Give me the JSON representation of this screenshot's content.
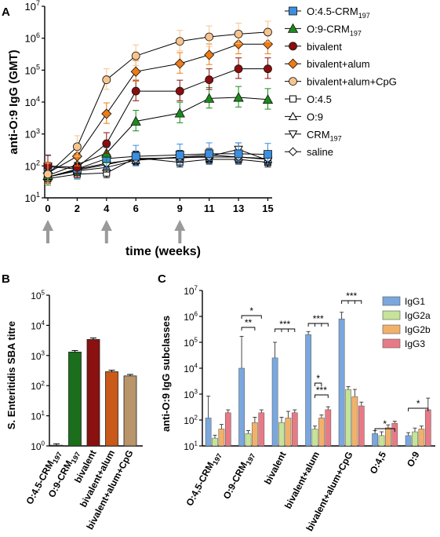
{
  "chart_data": [
    {
      "panel": "A",
      "type": "line",
      "ylabel": "anti-O:9 IgG (GMT)",
      "xlabel": "time (weeks)",
      "yscale": "log",
      "ylim": [
        10,
        10000000
      ],
      "y_ticks": [
        {
          "base": "10",
          "exp": "1"
        },
        {
          "base": "10",
          "exp": "2"
        },
        {
          "base": "10",
          "exp": "3"
        },
        {
          "base": "10",
          "exp": "4"
        },
        {
          "base": "10",
          "exp": "5"
        },
        {
          "base": "10",
          "exp": "6"
        },
        {
          "base": "10",
          "exp": "7"
        }
      ],
      "x": [
        0,
        2,
        4,
        6,
        9,
        11,
        13,
        15
      ],
      "x_tick_labels": [
        "0",
        "2",
        "4",
        "6",
        "9",
        "11",
        "13",
        "15"
      ],
      "immunization_weeks": [
        0,
        4,
        9
      ],
      "legend_position": "right",
      "series": [
        {
          "name": "O:4.5-CRM197",
          "label_main": "O:4.5-CRM",
          "label_sub": "197",
          "marker": "square",
          "color": "#3b8fe0",
          "values": [
            95,
            80,
            170,
            200,
            220,
            240,
            240,
            230
          ]
        },
        {
          "name": "O:9-CRM197",
          "label_main": "O:9-CRM",
          "label_sub": "197",
          "marker": "triangle",
          "color": "#1b8a1b",
          "values": [
            50,
            110,
            250,
            2500,
            4500,
            13000,
            14000,
            12000
          ]
        },
        {
          "name": "bivalent",
          "label_main": "bivalent",
          "label_sub": "",
          "marker": "circle",
          "color": "#8b0d0d",
          "values": [
            100,
            90,
            500,
            22000,
            22000,
            50000,
            110000,
            110000
          ]
        },
        {
          "name": "bivalent+alum",
          "label_main": "bivalent+alum",
          "label_sub": "",
          "marker": "diamond",
          "color": "#f07a14",
          "values": [
            60,
            200,
            4300,
            90000,
            160000,
            300000,
            650000,
            650000
          ]
        },
        {
          "name": "bivalent+alum+CpG",
          "label_main": "bivalent+alum+CpG",
          "label_sub": "",
          "marker": "circle",
          "color": "#f8c48e",
          "values": [
            55,
            400,
            50000,
            280000,
            800000,
            1100000,
            1350000,
            1550000
          ]
        },
        {
          "name": "O:4.5",
          "label_main": "O:4.5",
          "label_sub": "",
          "marker": "square-open",
          "color": "#000000",
          "values": [
            40,
            55,
            60,
            180,
            130,
            160,
            160,
            130
          ]
        },
        {
          "name": "O:9",
          "label_main": "O:9",
          "label_sub": "",
          "marker": "triangle-open",
          "color": "#000000",
          "values": [
            45,
            70,
            90,
            150,
            190,
            220,
            190,
            160
          ]
        },
        {
          "name": "CRM197",
          "label_main": "CRM",
          "label_sub": "197",
          "marker": "triangle-down-open",
          "color": "#000000",
          "values": [
            45,
            75,
            110,
            170,
            180,
            200,
            330,
            150
          ]
        },
        {
          "name": "saline",
          "label_main": "saline",
          "label_sub": "",
          "marker": "diamond-open",
          "color": "#000000",
          "values": [
            45,
            80,
            120,
            160,
            180,
            190,
            190,
            170
          ]
        }
      ]
    },
    {
      "panel": "B",
      "type": "bar",
      "ylabel": "S. Enteritidis SBA titre",
      "yscale": "log",
      "ylim": [
        1,
        100000
      ],
      "y_ticks": [
        {
          "base": "10",
          "exp": "0"
        },
        {
          "base": "10",
          "exp": "1"
        },
        {
          "base": "10",
          "exp": "2"
        },
        {
          "base": "10",
          "exp": "3"
        },
        {
          "base": "10",
          "exp": "4"
        },
        {
          "base": "10",
          "exp": "5"
        }
      ],
      "categories": [
        {
          "main": "O:4.5-CRM",
          "sub": "197"
        },
        {
          "main": "O:9-CRM",
          "sub": "197"
        },
        {
          "main": "bivalent",
          "sub": ""
        },
        {
          "main": "bivalent+alum",
          "sub": ""
        },
        {
          "main": "bivalent+alum+CpG",
          "sub": ""
        }
      ],
      "values": [
        1.05,
        1300,
        3400,
        290,
        210
      ],
      "colors": [
        "#1b6e1b",
        "#1b6e1b",
        "#8b1010",
        "#c95a1a",
        "#b8956a"
      ]
    },
    {
      "panel": "C",
      "type": "bar",
      "ylabel": "anti-O:9 IgG subclasses",
      "yscale": "log",
      "ylim": [
        10,
        10000000
      ],
      "y_ticks": [
        {
          "base": "10",
          "exp": "1"
        },
        {
          "base": "10",
          "exp": "2"
        },
        {
          "base": "10",
          "exp": "3"
        },
        {
          "base": "10",
          "exp": "4"
        },
        {
          "base": "10",
          "exp": "5"
        },
        {
          "base": "10",
          "exp": "6"
        },
        {
          "base": "10",
          "exp": "7"
        }
      ],
      "categories": [
        {
          "main": "O:4,5-CRM",
          "sub": "197"
        },
        {
          "main": "O:9-CRM",
          "sub": "197"
        },
        {
          "main": "bivalent",
          "sub": ""
        },
        {
          "main": "bivalent+alum",
          "sub": ""
        },
        {
          "main": "bivalent+alum+CpG",
          "sub": ""
        },
        {
          "main": "O:4,5",
          "sub": ""
        },
        {
          "main": "O:9",
          "sub": ""
        }
      ],
      "legend_position": "top-right",
      "series": [
        {
          "name": "IgG1",
          "color": "#7aa7dd",
          "values": [
            120,
            10000,
            25000,
            200000,
            800000,
            30,
            25
          ]
        },
        {
          "name": "IgG2a",
          "color": "#c6e39a",
          "values": [
            20,
            30,
            80,
            45,
            1500,
            25,
            35
          ]
        },
        {
          "name": "IgG2b",
          "color": "#f2b16a",
          "values": [
            45,
            80,
            120,
            120,
            800,
            50,
            45
          ]
        },
        {
          "name": "IgG3",
          "color": "#e87a86",
          "values": [
            190,
            190,
            190,
            250,
            350,
            75,
            250
          ]
        }
      ],
      "significance": [
        "*",
        "**",
        "***",
        "***",
        "*",
        "***",
        "***",
        "*",
        "*"
      ]
    }
  ],
  "panel_labels": [
    "A",
    "B",
    "C"
  ]
}
